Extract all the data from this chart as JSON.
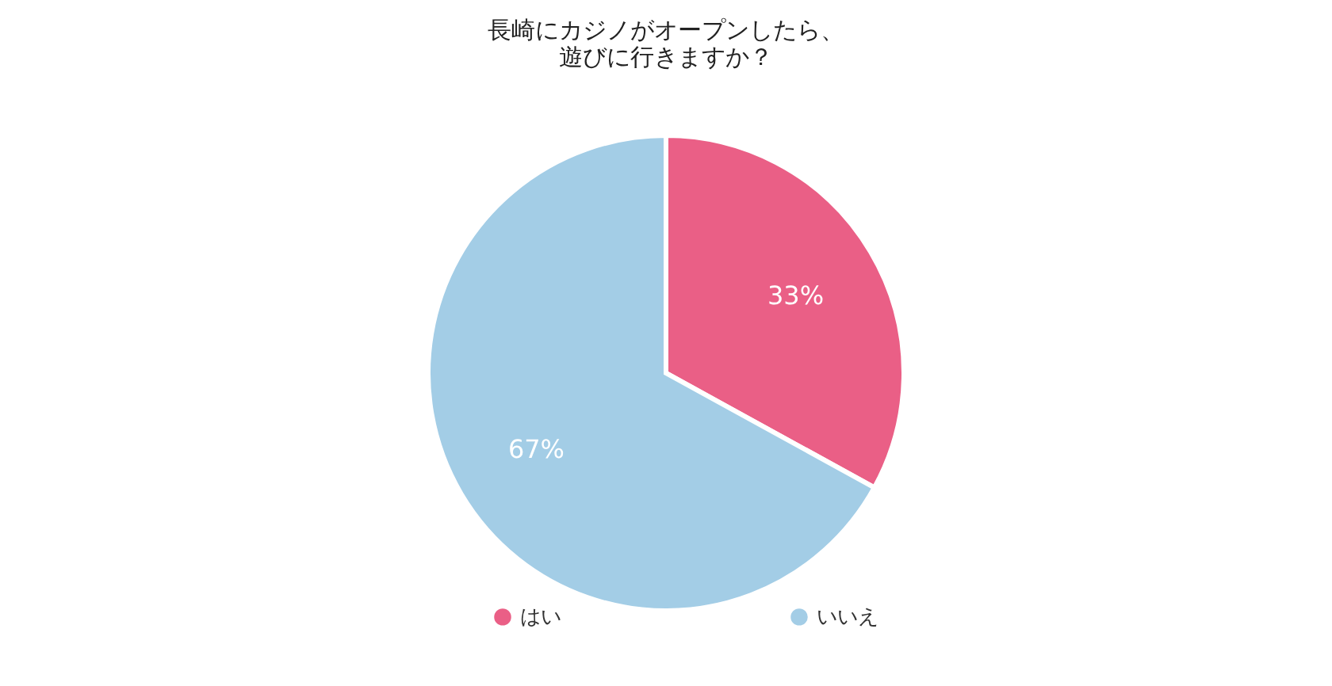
{
  "chart_data": {
    "type": "pie",
    "title": "長崎にカジノがオープンしたら、遊びに行きますか？",
    "categories": [
      "はい",
      "いいえ"
    ],
    "values": [
      33,
      67
    ],
    "colors": [
      "#ea5f86",
      "#a3cde6"
    ],
    "value_labels": [
      "33%",
      "67%"
    ],
    "legend": "bottom"
  }
}
